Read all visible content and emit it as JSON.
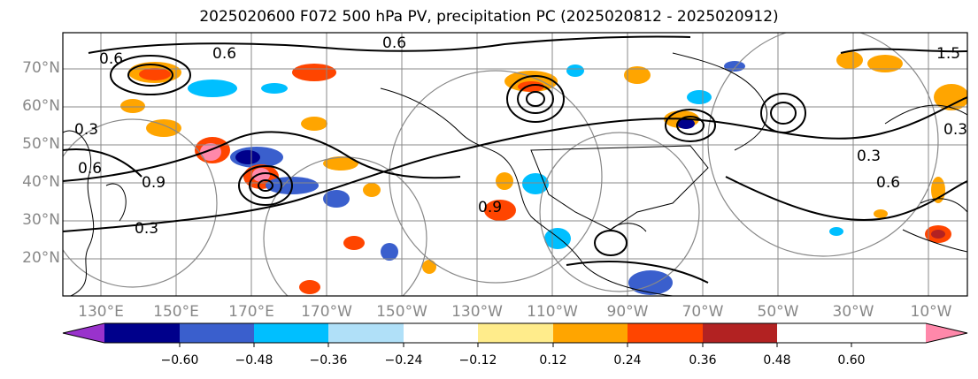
{
  "title": "2025020600 F072 500 hPa PV, precipitation PC (2025020812 - 2025020912)",
  "lat_labels": [
    "70°N",
    "60°N",
    "50°N",
    "40°N",
    "30°N",
    "20°N"
  ],
  "lon_labels": [
    "130°E",
    "150°E",
    "170°E",
    "170°W",
    "150°W",
    "130°W",
    "110°W",
    "90°W",
    "70°W",
    "50°W",
    "30°W",
    "10°W"
  ],
  "contour_labels": [
    "0.6",
    "0.6",
    "0.9",
    "0.3",
    "0.3",
    "0.9",
    "0.3",
    "0.6",
    "0.3",
    "0.6",
    "0.6",
    "1.5"
  ],
  "colorbar": {
    "ticks": [
      "−0.60",
      "−0.48",
      "−0.36",
      "−0.24",
      "−0.12",
      "0.12",
      "0.24",
      "0.36",
      "0.48",
      "0.60"
    ],
    "colors": [
      "#9932cc",
      "#00008b",
      "#3a5fcd",
      "#00bfff",
      "#b0e0f8",
      "#ffffff",
      "#ffec8b",
      "#ffa500",
      "#ff4500",
      "#b22222",
      "#ff88aa"
    ]
  }
}
